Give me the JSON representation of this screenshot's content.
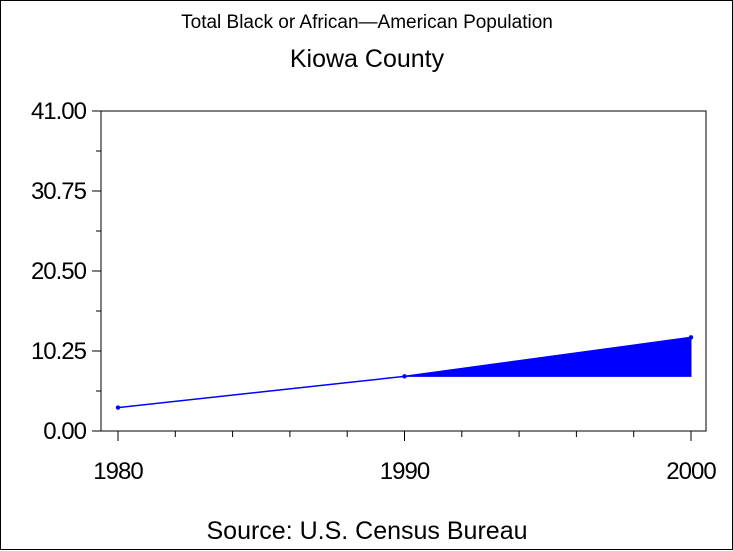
{
  "chart_data": {
    "type": "line",
    "title": "Total Black or African—American Population",
    "subtitle": "Kiowa County",
    "source": "Source: U.S. Census Bureau",
    "x": [
      1980,
      1990,
      2000
    ],
    "xticks": [
      "1980",
      "1990",
      "2000"
    ],
    "xlim": [
      1980,
      2000
    ],
    "yticks": [
      "0.00",
      "10.25",
      "20.50",
      "30.75",
      "41.00"
    ],
    "ylim": [
      0,
      41
    ],
    "series": [
      {
        "values": [
          3,
          7,
          12
        ]
      }
    ],
    "band": {
      "from_x": 1990,
      "to_x": 2000,
      "low": [
        7,
        7
      ],
      "high": [
        7,
        12
      ]
    },
    "grid": false,
    "line_color": "#0000ff",
    "fill_color": "#0000ff"
  }
}
